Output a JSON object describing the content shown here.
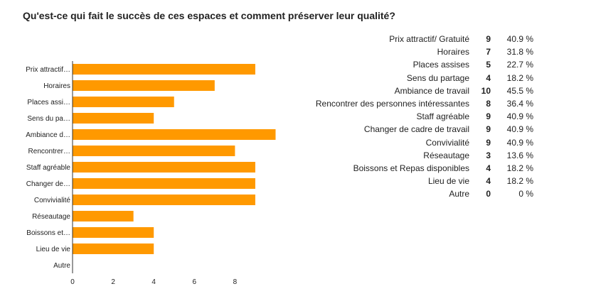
{
  "title": "Qu'est-ce qui fait le succès de ces espaces et comment préserver leur qualité?",
  "colors": {
    "bar": "#ff9900",
    "axis": "#333333",
    "text": "#222222"
  },
  "chart_data": {
    "type": "bar",
    "orientation": "horizontal",
    "categories": [
      "Prix attractif…",
      "Horaires",
      "Places assi…",
      "Sens du pa…",
      "Ambiance d…",
      "Rencontrer…",
      "Staff agréable",
      "Changer de…",
      "Convivialité",
      "Réseautage",
      "Boissons et…",
      "Lieu de vie",
      "Autre"
    ],
    "values": [
      9,
      7,
      5,
      4,
      10,
      8,
      9,
      9,
      9,
      3,
      4,
      4,
      0
    ],
    "xticks": [
      "0",
      "2",
      "4",
      "6",
      "8"
    ],
    "xlim": [
      0,
      10.2
    ],
    "grid": false,
    "legend": "none"
  },
  "summary": [
    {
      "label": "Prix attractif/ Gratuité",
      "count": "9",
      "percent": "40.9 %"
    },
    {
      "label": "Horaires",
      "count": "7",
      "percent": "31.8 %"
    },
    {
      "label": "Places assises",
      "count": "5",
      "percent": "22.7 %"
    },
    {
      "label": "Sens du partage",
      "count": "4",
      "percent": "18.2 %"
    },
    {
      "label": "Ambiance de travail",
      "count": "10",
      "percent": "45.5 %"
    },
    {
      "label": "Rencontrer des personnes intéressantes",
      "count": "8",
      "percent": "36.4 %"
    },
    {
      "label": "Staff agréable",
      "count": "9",
      "percent": "40.9 %"
    },
    {
      "label": "Changer de cadre de travail",
      "count": "9",
      "percent": "40.9 %"
    },
    {
      "label": "Convivialité",
      "count": "9",
      "percent": "40.9 %"
    },
    {
      "label": "Réseautage",
      "count": "3",
      "percent": "13.6 %"
    },
    {
      "label": "Boissons et Repas disponibles",
      "count": "4",
      "percent": "18.2 %"
    },
    {
      "label": "Lieu de vie",
      "count": "4",
      "percent": "18.2 %"
    },
    {
      "label": "Autre",
      "count": "0",
      "percent": "0 %"
    }
  ]
}
